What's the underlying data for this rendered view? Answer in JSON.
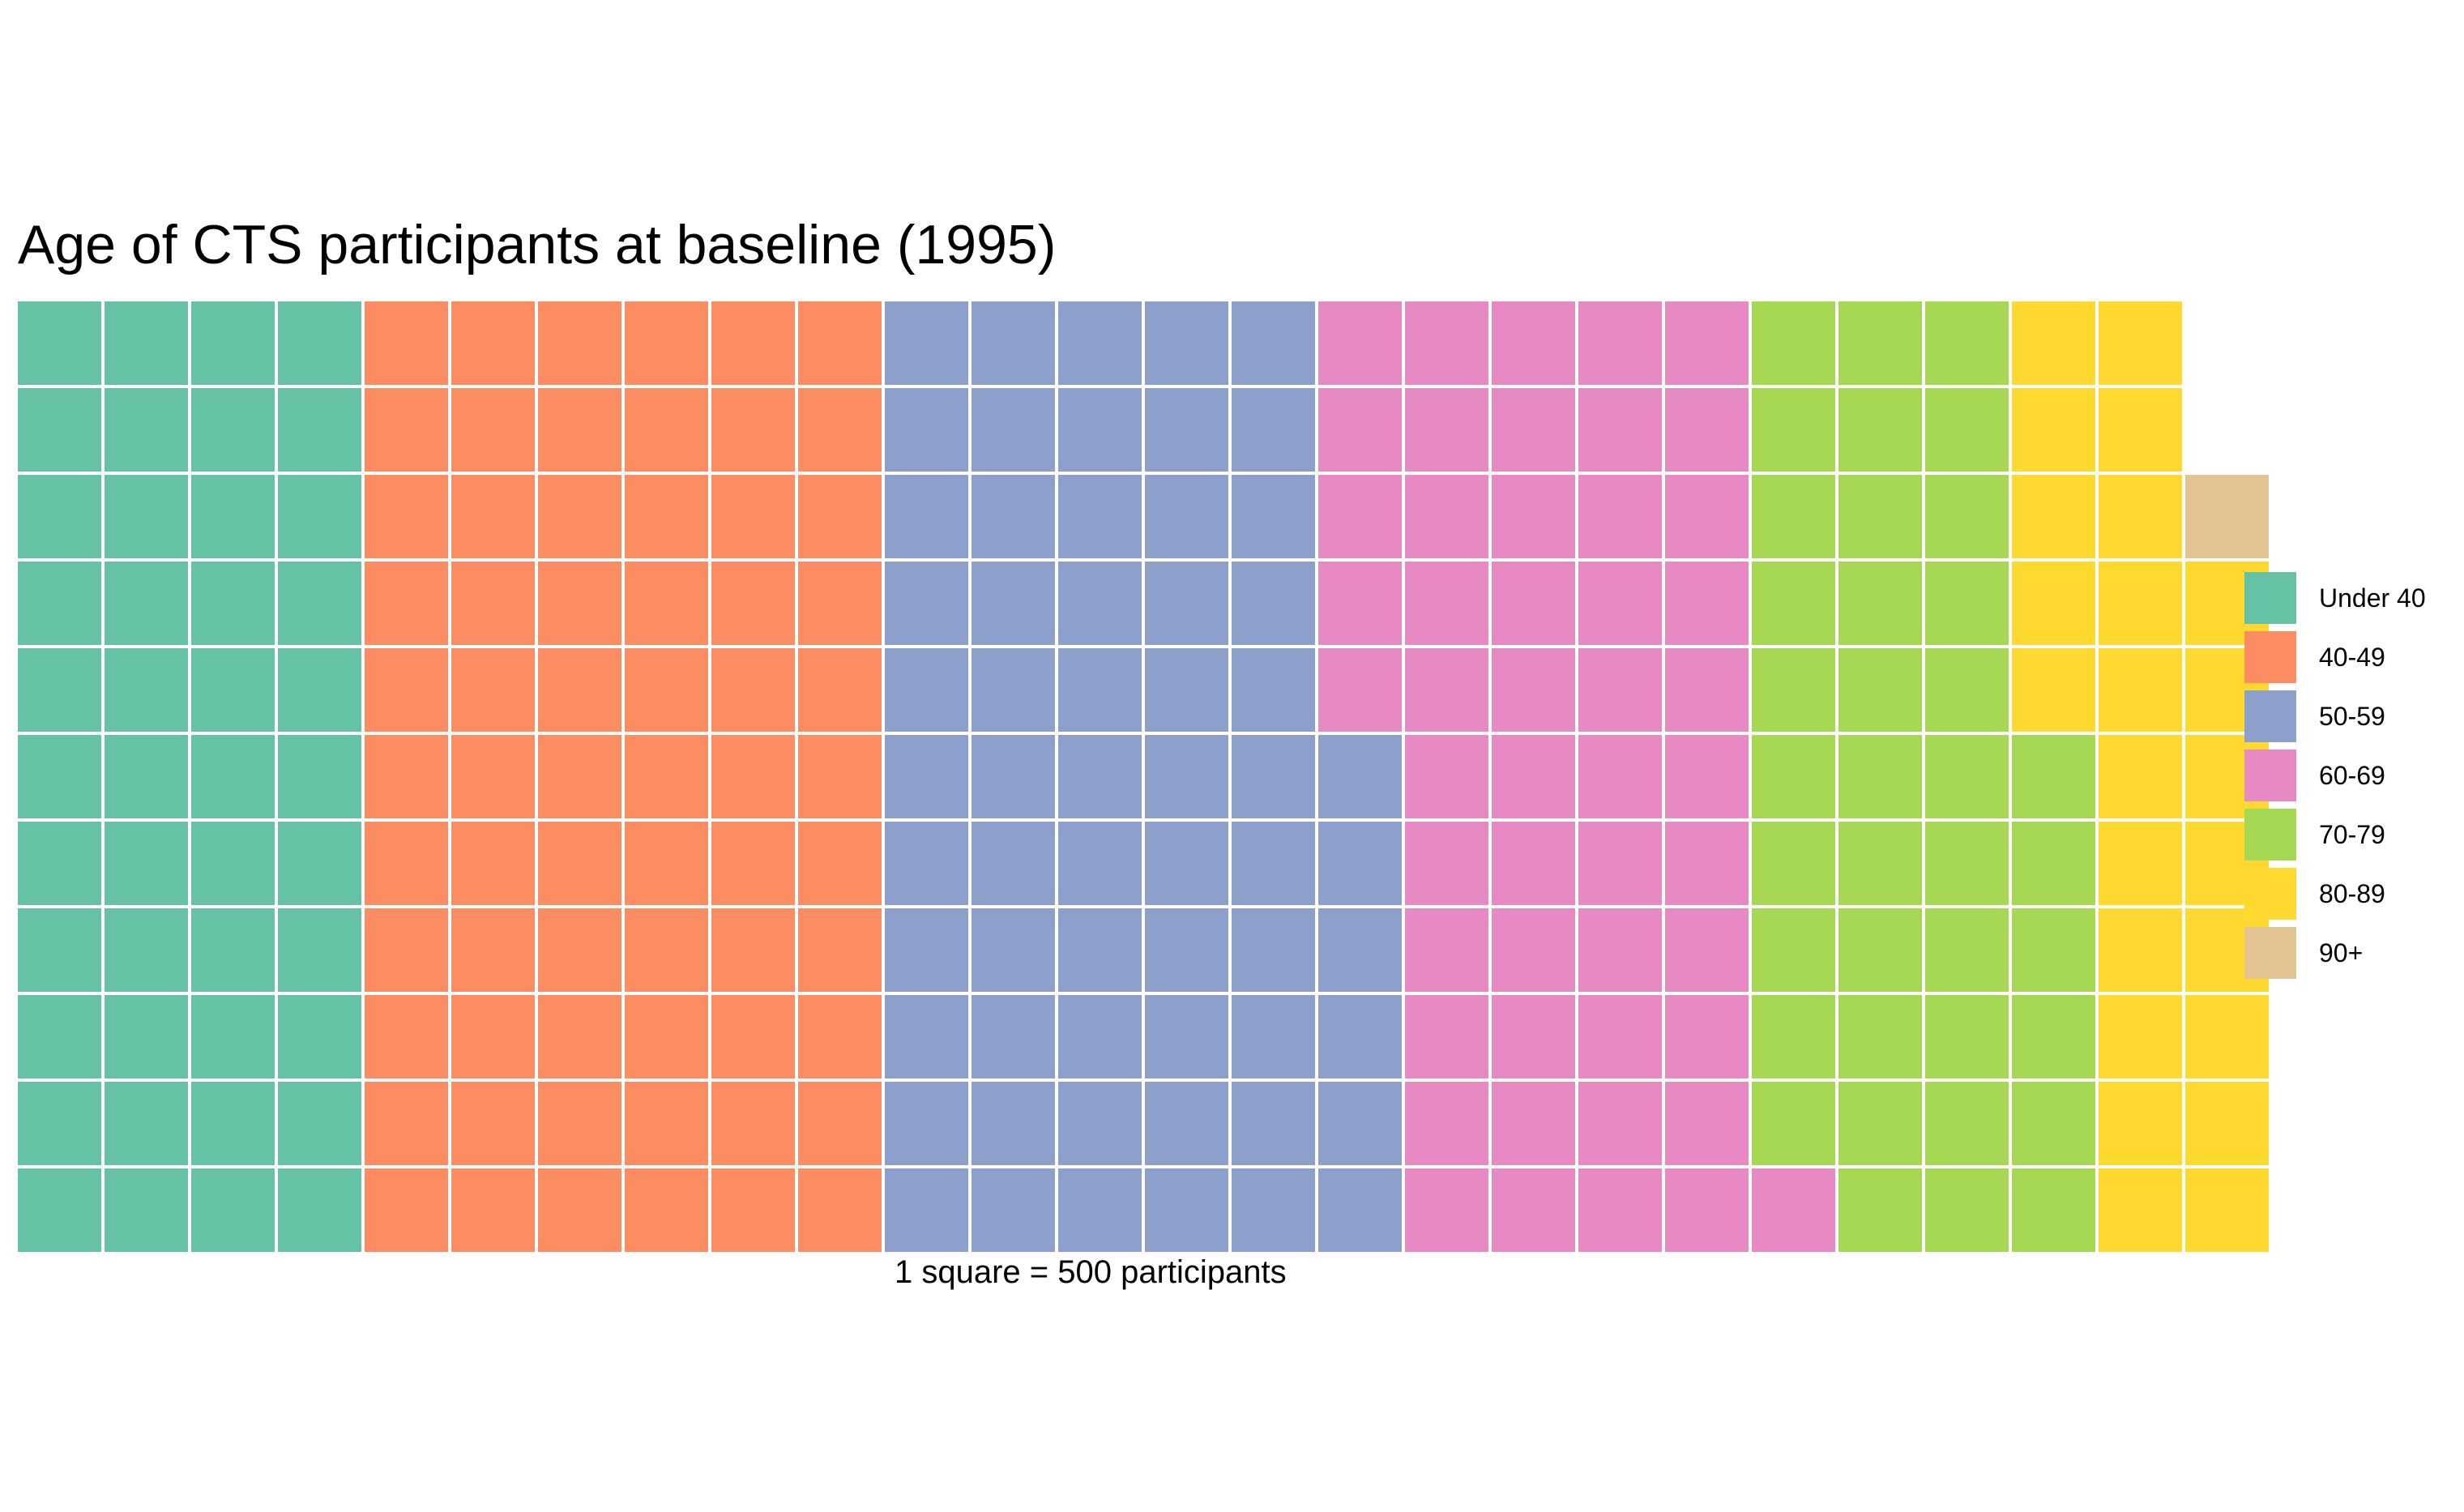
{
  "chart_data": {
    "type": "waffle",
    "title": "Age of CTS participants at baseline (1995)",
    "caption": "1 square = 500 participants",
    "xlabel": "",
    "ylabel": "",
    "grid": false,
    "rows": 11,
    "fill_order": "column-wise, bottom to top, left to right",
    "unit_value": 500,
    "legend_position": "right",
    "categories": [
      "Under 40",
      "40-49",
      "50-59",
      "60-69",
      "70-79",
      "80-89",
      "90+"
    ],
    "values": [
      44,
      66,
      61,
      50,
      38,
      24,
      1
    ],
    "colors": [
      "#66C2A5",
      "#FC8D62",
      "#8DA0CB",
      "#E78AC3",
      "#A6D854",
      "#FFD92F",
      "#E5C494"
    ]
  }
}
